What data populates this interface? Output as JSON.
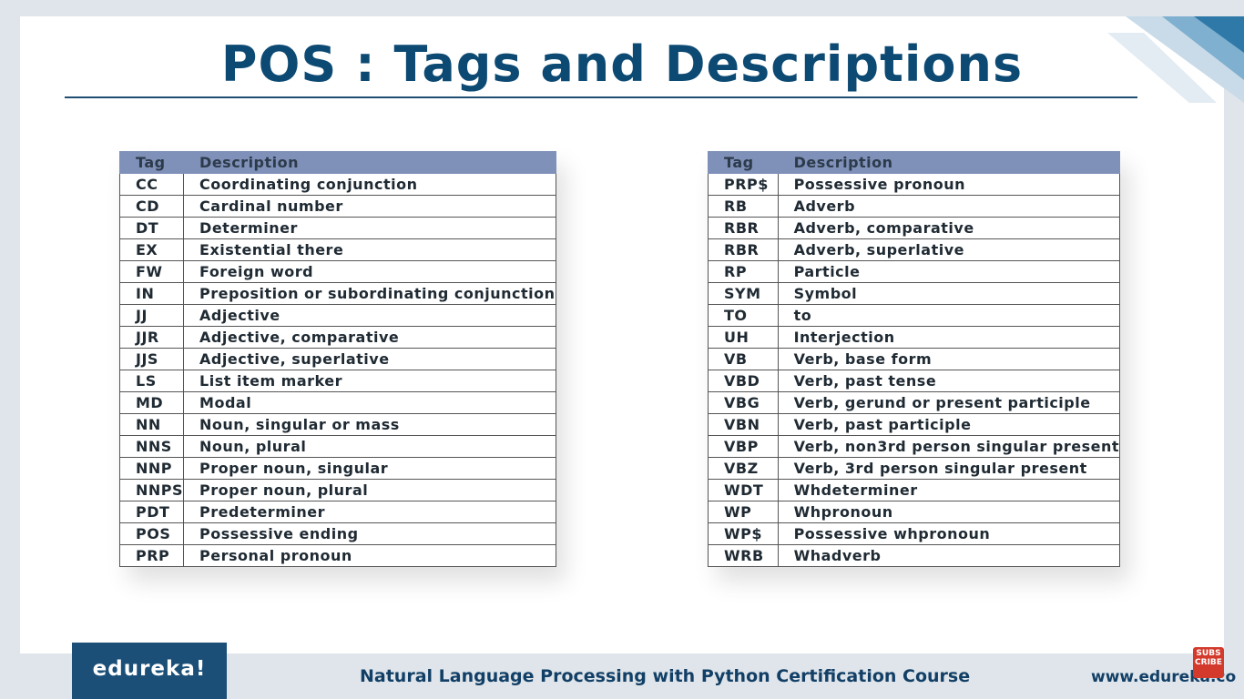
{
  "title": "POS : Tags and Descriptions",
  "colors": {
    "title": "#0d4a73",
    "header_bg": "#7f90b9",
    "logo_bg": "#1b4f78",
    "subscribe_bg": "#d33a2c"
  },
  "table_left": {
    "header": {
      "tag": "Tag",
      "description": "Description"
    },
    "rows": [
      {
        "tag": "CC",
        "description": "Coordinating conjunction"
      },
      {
        "tag": "CD",
        "description": "Cardinal number"
      },
      {
        "tag": "DT",
        "description": "Determiner"
      },
      {
        "tag": "EX",
        "description": "Existential there"
      },
      {
        "tag": "FW",
        "description": "Foreign word"
      },
      {
        "tag": "IN",
        "description": "Preposition or subordinating conjunction"
      },
      {
        "tag": "JJ",
        "description": "Adjective"
      },
      {
        "tag": "JJR",
        "description": "Adjective, comparative"
      },
      {
        "tag": "JJS",
        "description": "Adjective, superlative"
      },
      {
        "tag": "LS",
        "description": "List item marker"
      },
      {
        "tag": "MD",
        "description": "Modal"
      },
      {
        "tag": "NN",
        "description": "Noun, singular or mass"
      },
      {
        "tag": "NNS",
        "description": "Noun, plural"
      },
      {
        "tag": "NNP",
        "description": "Proper noun, singular"
      },
      {
        "tag": "NNPS",
        "description": "Proper noun, plural"
      },
      {
        "tag": "PDT",
        "description": "Predeterminer"
      },
      {
        "tag": "POS",
        "description": "Possessive ending"
      },
      {
        "tag": "PRP",
        "description": "Personal pronoun"
      }
    ]
  },
  "table_right": {
    "header": {
      "tag": "Tag",
      "description": "Description"
    },
    "rows": [
      {
        "tag": "PRP$",
        "description": "Possessive pronoun"
      },
      {
        "tag": "RB",
        "description": "Adverb"
      },
      {
        "tag": "RBR",
        "description": "Adverb, comparative"
      },
      {
        "tag": "RBR",
        "description": "Adverb, superlative"
      },
      {
        "tag": "RP",
        "description": "Particle"
      },
      {
        "tag": "SYM",
        "description": "Symbol"
      },
      {
        "tag": "TO",
        "description": "to"
      },
      {
        "tag": "UH",
        "description": "Interjection"
      },
      {
        "tag": "VB",
        "description": "Verb, base form"
      },
      {
        "tag": "VBD",
        "description": "Verb, past tense"
      },
      {
        "tag": "VBG",
        "description": "Verb, gerund or present participle"
      },
      {
        "tag": "VBN",
        "description": "Verb, past participle"
      },
      {
        "tag": "VBP",
        "description": "Verb, non3rd person singular present"
      },
      {
        "tag": "VBZ",
        "description": "Verb, 3rd person singular present"
      },
      {
        "tag": "WDT",
        "description": "Whdeterminer"
      },
      {
        "tag": "WP",
        "description": "Whpronoun"
      },
      {
        "tag": "WP$",
        "description": "Possessive whpronoun"
      },
      {
        "tag": "WRB",
        "description": "Whadverb"
      }
    ]
  },
  "footer": {
    "logo": "edureka!",
    "course": "Natural Language Processing with Python Certification Course",
    "site": "www.edureka.co",
    "subscribe": "SUBS CRIBE"
  }
}
